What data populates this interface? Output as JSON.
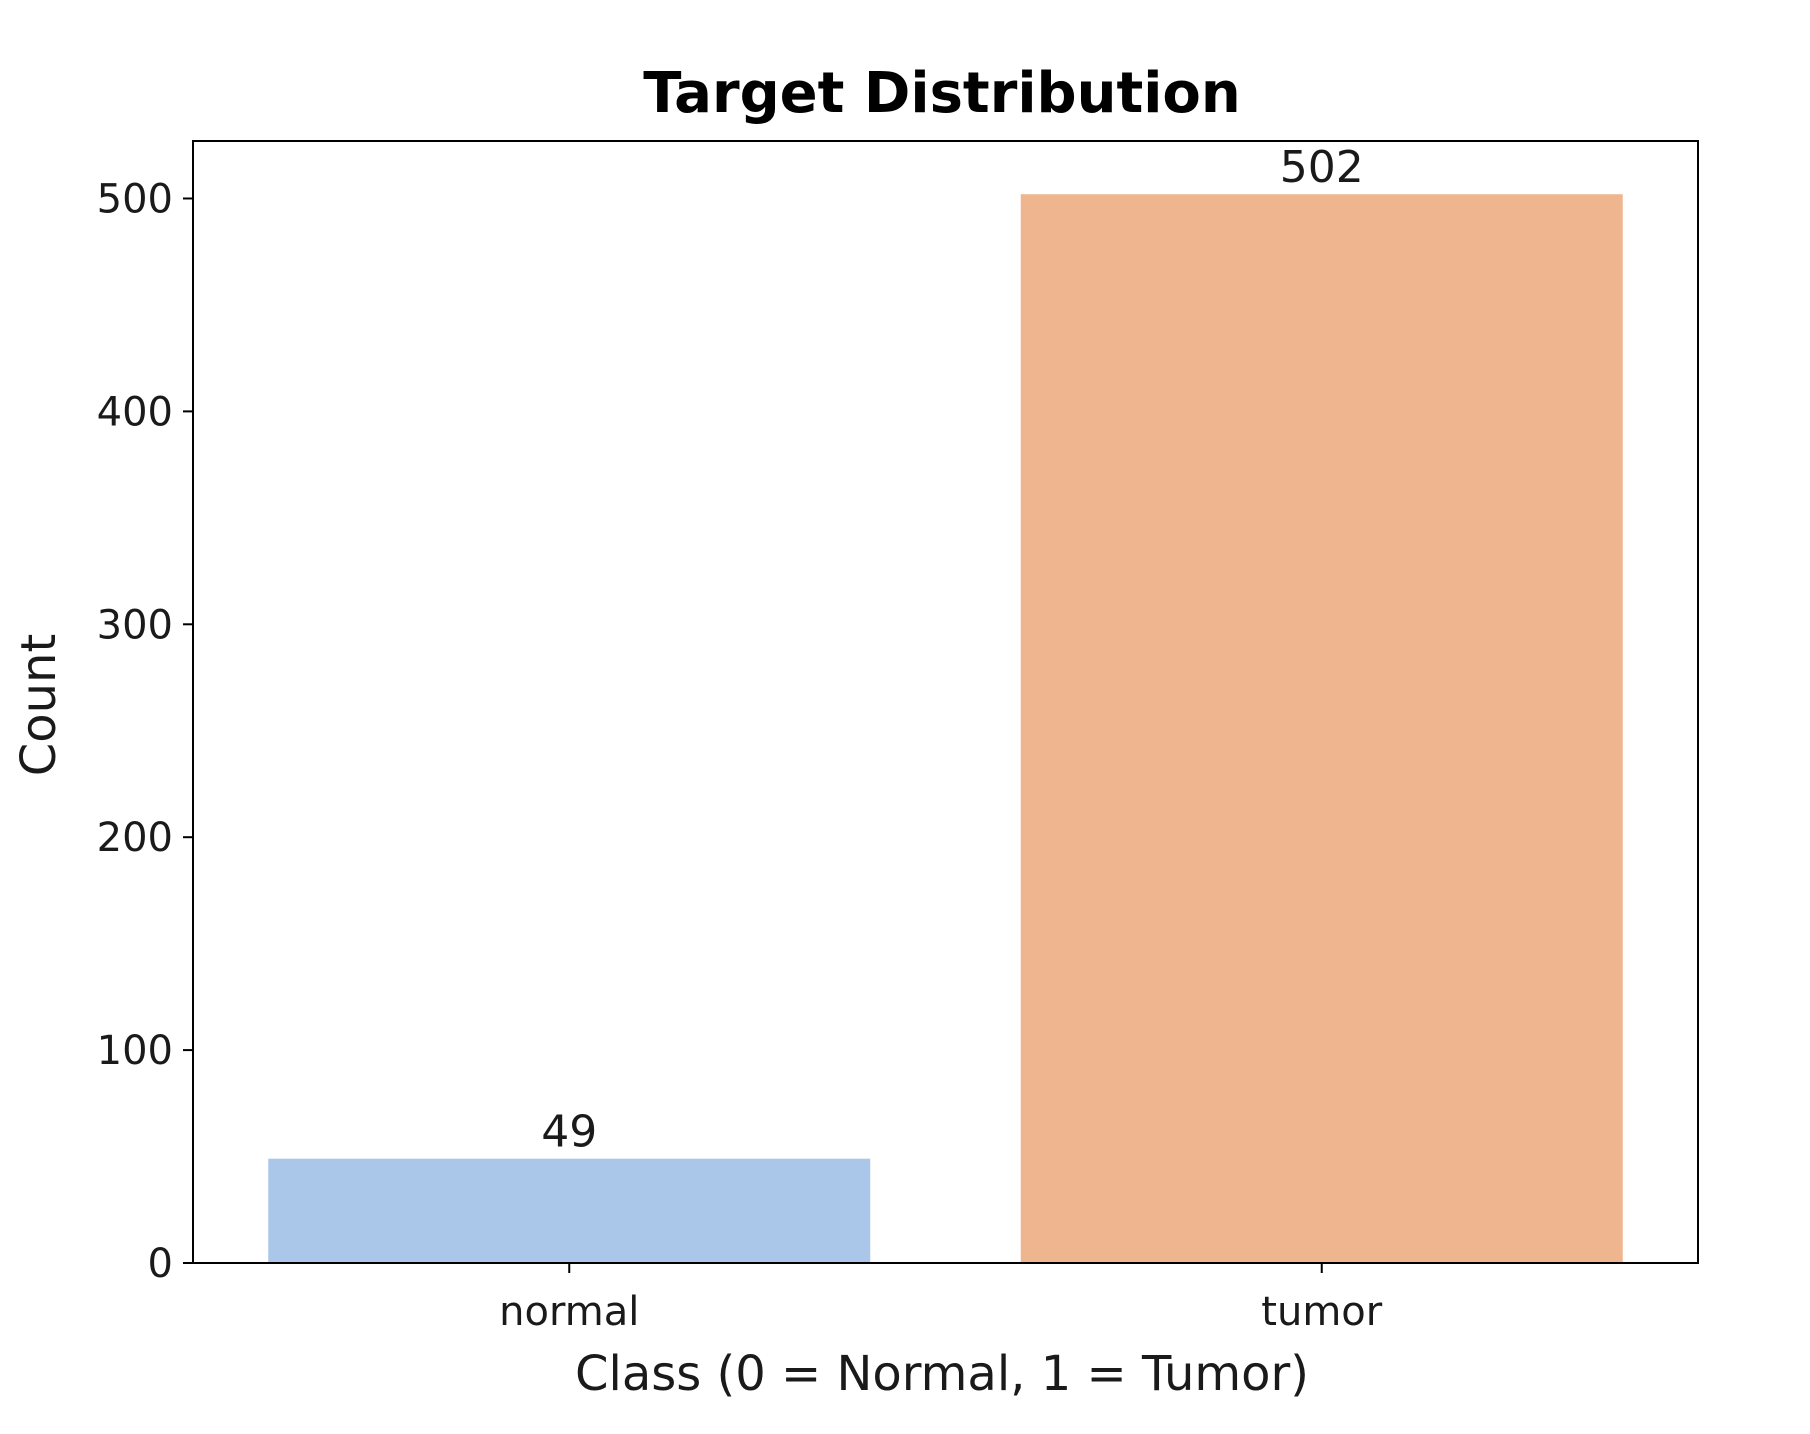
{
  "chart_data": {
    "type": "bar",
    "title": "Target Distribution",
    "xlabel": "Class (0 = Normal, 1 = Tumor)",
    "ylabel": "Count",
    "categories": [
      "normal",
      "tumor"
    ],
    "values": [
      49,
      502
    ],
    "data_labels": [
      "49",
      "502"
    ],
    "colors": [
      "#aac7ea",
      "#efb58f"
    ],
    "ylim": [
      0,
      527
    ],
    "yticks": [
      0,
      100,
      200,
      300,
      400,
      500
    ],
    "ytick_labels": [
      "0",
      "100",
      "200",
      "300",
      "400",
      "500"
    ],
    "grid": false,
    "legend": "none"
  }
}
